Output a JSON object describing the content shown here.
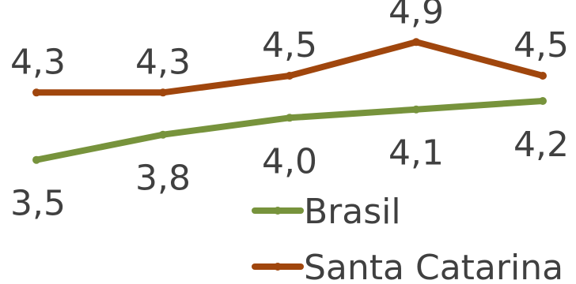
{
  "chart_data": {
    "type": "line",
    "categories": [
      "",
      "",
      "",
      "",
      ""
    ],
    "series": [
      {
        "name": "Brasil",
        "color": "#77933c",
        "values": [
          3.5,
          3.8,
          4.0,
          4.1,
          4.2
        ],
        "labels": [
          "3,5",
          "3,8",
          "4,0",
          "4,1",
          "4,2"
        ],
        "label_position": "below"
      },
      {
        "name": "Santa Catarina",
        "color": "#a0460d",
        "values": [
          4.3,
          4.3,
          4.5,
          4.9,
          4.5
        ],
        "labels": [
          "4,3",
          "4,3",
          "4,5",
          "4,9",
          "4,5"
        ],
        "label_position": "above"
      }
    ],
    "title": "",
    "xlabel": "",
    "ylabel": "",
    "ylim": [
      2.4,
      5.4
    ],
    "grid": false,
    "legend": "bottom-right"
  }
}
